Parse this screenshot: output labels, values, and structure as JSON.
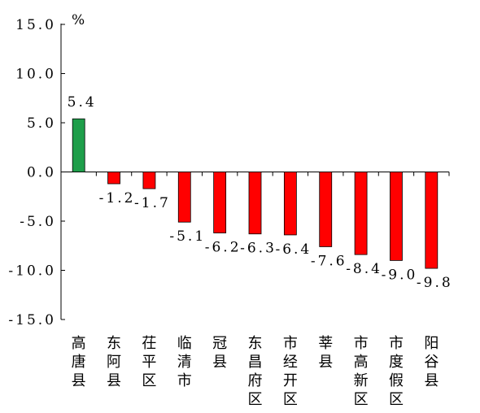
{
  "chart_data": {
    "type": "bar",
    "unit": "%",
    "categories": [
      "高唐县",
      "东阿县",
      "茌平区",
      "临清市",
      "冠县",
      "东昌府区",
      "市经开区",
      "莘县",
      "市高新区",
      "市度假区",
      "阳谷县"
    ],
    "values": [
      5.4,
      -1.2,
      -1.7,
      -5.1,
      -6.2,
      -6.3,
      -6.4,
      -7.6,
      -8.4,
      -9.0,
      -9.8
    ],
    "value_labels": [
      "5.4",
      "-1.2",
      "-1.7",
      "-5.1",
      "-6.2",
      "-6.3",
      "-6.4",
      "-7.6",
      "-8.4",
      "-9.0",
      "-9.8"
    ],
    "ylim": [
      -15,
      15
    ],
    "yticks": [
      15,
      10,
      5,
      0,
      -5,
      -10,
      -15
    ],
    "ytick_labels": [
      "15.0",
      "10.0",
      "5.0",
      "0.0",
      "-5.0",
      "-10.0",
      "-15.0"
    ],
    "grid": false,
    "legend": "none",
    "colors": {
      "positive": "#1e9e4a",
      "negative": "#ff0000",
      "edge": "#000000"
    }
  }
}
